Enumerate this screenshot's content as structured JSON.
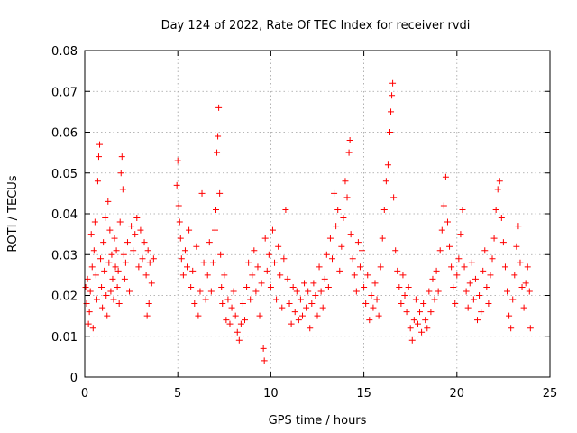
{
  "chart_data": {
    "type": "scatter",
    "title": "Day 124 of 2022, Rate Of TEC Index for receiver rvdi",
    "xlabel": "GPS time / hours",
    "ylabel": "ROTI / TECUs",
    "xlim": [
      0,
      25
    ],
    "ylim": [
      0,
      0.08
    ],
    "x_ticks": [
      "0",
      "5",
      "10",
      "15",
      "20",
      "25"
    ],
    "y_ticks": [
      "0",
      "0.01",
      "0.02",
      "0.03",
      "0.04",
      "0.05",
      "0.06",
      "0.07",
      "0.08"
    ],
    "grid": true,
    "marker": "+",
    "marker_color": "#ff0000",
    "series": [
      {
        "name": "",
        "points": [
          [
            0.05,
            0.022
          ],
          [
            0.1,
            0.018
          ],
          [
            0.15,
            0.024
          ],
          [
            0.2,
            0.013
          ],
          [
            0.25,
            0.016
          ],
          [
            0.3,
            0.021
          ],
          [
            0.35,
            0.035
          ],
          [
            0.4,
            0.027
          ],
          [
            0.45,
            0.012
          ],
          [
            0.5,
            0.031
          ],
          [
            0.55,
            0.038
          ],
          [
            0.6,
            0.025
          ],
          [
            0.65,
            0.019
          ],
          [
            0.7,
            0.048
          ],
          [
            0.75,
            0.054
          ],
          [
            0.8,
            0.057
          ],
          [
            0.85,
            0.029
          ],
          [
            0.9,
            0.022
          ],
          [
            0.95,
            0.017
          ],
          [
            1.0,
            0.033
          ],
          [
            1.05,
            0.026
          ],
          [
            1.1,
            0.039
          ],
          [
            1.15,
            0.02
          ],
          [
            1.2,
            0.015
          ],
          [
            1.25,
            0.043
          ],
          [
            1.3,
            0.028
          ],
          [
            1.35,
            0.036
          ],
          [
            1.4,
            0.021
          ],
          [
            1.45,
            0.03
          ],
          [
            1.5,
            0.024
          ],
          [
            1.55,
            0.019
          ],
          [
            1.6,
            0.034
          ],
          [
            1.65,
            0.027
          ],
          [
            1.7,
            0.031
          ],
          [
            1.75,
            0.022
          ],
          [
            1.8,
            0.026
          ],
          [
            1.85,
            0.018
          ],
          [
            1.9,
            0.038
          ],
          [
            1.95,
            0.05
          ],
          [
            2.0,
            0.054
          ],
          [
            2.05,
            0.046
          ],
          [
            2.1,
            0.03
          ],
          [
            2.15,
            0.024
          ],
          [
            2.2,
            0.028
          ],
          [
            2.3,
            0.033
          ],
          [
            2.4,
            0.021
          ],
          [
            2.5,
            0.037
          ],
          [
            2.6,
            0.031
          ],
          [
            2.7,
            0.035
          ],
          [
            2.8,
            0.039
          ],
          [
            2.9,
            0.027
          ],
          [
            3.0,
            0.036
          ],
          [
            3.1,
            0.029
          ],
          [
            3.2,
            0.033
          ],
          [
            3.3,
            0.025
          ],
          [
            3.4,
            0.031
          ],
          [
            3.5,
            0.028
          ],
          [
            3.6,
            0.023
          ],
          [
            3.7,
            0.029
          ],
          [
            3.35,
            0.015
          ],
          [
            3.45,
            0.018
          ],
          [
            4.95,
            0.047
          ],
          [
            5.0,
            0.053
          ],
          [
            5.05,
            0.042
          ],
          [
            5.1,
            0.038
          ],
          [
            5.15,
            0.034
          ],
          [
            5.2,
            0.029
          ],
          [
            5.3,
            0.025
          ],
          [
            5.4,
            0.031
          ],
          [
            5.5,
            0.027
          ],
          [
            5.6,
            0.036
          ],
          [
            5.7,
            0.022
          ],
          [
            5.8,
            0.026
          ],
          [
            5.9,
            0.018
          ],
          [
            6.0,
            0.032
          ],
          [
            6.1,
            0.015
          ],
          [
            6.2,
            0.021
          ],
          [
            6.3,
            0.045
          ],
          [
            6.4,
            0.028
          ],
          [
            6.5,
            0.019
          ],
          [
            6.6,
            0.025
          ],
          [
            6.7,
            0.033
          ],
          [
            6.8,
            0.021
          ],
          [
            6.9,
            0.028
          ],
          [
            7.0,
            0.036
          ],
          [
            7.05,
            0.041
          ],
          [
            7.1,
            0.055
          ],
          [
            7.15,
            0.059
          ],
          [
            7.2,
            0.066
          ],
          [
            7.25,
            0.045
          ],
          [
            7.3,
            0.03
          ],
          [
            7.35,
            0.022
          ],
          [
            7.4,
            0.018
          ],
          [
            7.5,
            0.025
          ],
          [
            7.6,
            0.014
          ],
          [
            7.7,
            0.019
          ],
          [
            7.8,
            0.013
          ],
          [
            7.9,
            0.017
          ],
          [
            8.0,
            0.021
          ],
          [
            8.1,
            0.015
          ],
          [
            8.2,
            0.011
          ],
          [
            8.3,
            0.009
          ],
          [
            8.4,
            0.013
          ],
          [
            8.5,
            0.018
          ],
          [
            8.6,
            0.014
          ],
          [
            8.7,
            0.022
          ],
          [
            8.8,
            0.028
          ],
          [
            8.9,
            0.019
          ],
          [
            9.0,
            0.025
          ],
          [
            9.1,
            0.031
          ],
          [
            9.2,
            0.021
          ],
          [
            9.3,
            0.027
          ],
          [
            9.4,
            0.015
          ],
          [
            9.5,
            0.023
          ],
          [
            9.6,
            0.007
          ],
          [
            9.65,
            0.004
          ],
          [
            9.7,
            0.034
          ],
          [
            9.8,
            0.026
          ],
          [
            9.9,
            0.03
          ],
          [
            10.0,
            0.022
          ],
          [
            10.1,
            0.036
          ],
          [
            10.2,
            0.028
          ],
          [
            10.3,
            0.019
          ],
          [
            10.4,
            0.032
          ],
          [
            10.5,
            0.025
          ],
          [
            10.6,
            0.017
          ],
          [
            10.7,
            0.029
          ],
          [
            10.8,
            0.041
          ],
          [
            10.9,
            0.024
          ],
          [
            11.0,
            0.018
          ],
          [
            11.1,
            0.013
          ],
          [
            11.2,
            0.022
          ],
          [
            11.3,
            0.016
          ],
          [
            11.4,
            0.021
          ],
          [
            11.5,
            0.014
          ],
          [
            11.6,
            0.019
          ],
          [
            11.7,
            0.015
          ],
          [
            11.8,
            0.023
          ],
          [
            11.9,
            0.017
          ],
          [
            12.0,
            0.021
          ],
          [
            12.1,
            0.012
          ],
          [
            12.2,
            0.018
          ],
          [
            12.3,
            0.023
          ],
          [
            12.4,
            0.02
          ],
          [
            12.5,
            0.015
          ],
          [
            12.6,
            0.027
          ],
          [
            12.7,
            0.021
          ],
          [
            12.8,
            0.017
          ],
          [
            12.9,
            0.024
          ],
          [
            13.0,
            0.03
          ],
          [
            13.1,
            0.022
          ],
          [
            13.2,
            0.034
          ],
          [
            13.3,
            0.029
          ],
          [
            13.4,
            0.045
          ],
          [
            13.5,
            0.037
          ],
          [
            13.6,
            0.041
          ],
          [
            13.7,
            0.026
          ],
          [
            13.8,
            0.032
          ],
          [
            13.9,
            0.039
          ],
          [
            14.0,
            0.048
          ],
          [
            14.1,
            0.044
          ],
          [
            14.2,
            0.055
          ],
          [
            14.25,
            0.058
          ],
          [
            14.3,
            0.035
          ],
          [
            14.4,
            0.029
          ],
          [
            14.5,
            0.025
          ],
          [
            14.6,
            0.021
          ],
          [
            14.7,
            0.033
          ],
          [
            14.8,
            0.027
          ],
          [
            14.9,
            0.031
          ],
          [
            15.0,
            0.022
          ],
          [
            15.1,
            0.018
          ],
          [
            15.2,
            0.025
          ],
          [
            15.3,
            0.014
          ],
          [
            15.4,
            0.02
          ],
          [
            15.5,
            0.017
          ],
          [
            15.6,
            0.023
          ],
          [
            15.7,
            0.019
          ],
          [
            15.8,
            0.015
          ],
          [
            15.9,
            0.027
          ],
          [
            16.0,
            0.034
          ],
          [
            16.1,
            0.041
          ],
          [
            16.2,
            0.048
          ],
          [
            16.3,
            0.052
          ],
          [
            16.4,
            0.06
          ],
          [
            16.45,
            0.065
          ],
          [
            16.5,
            0.069
          ],
          [
            16.55,
            0.072
          ],
          [
            16.6,
            0.044
          ],
          [
            16.7,
            0.031
          ],
          [
            16.8,
            0.026
          ],
          [
            16.9,
            0.022
          ],
          [
            17.0,
            0.018
          ],
          [
            17.1,
            0.025
          ],
          [
            17.2,
            0.02
          ],
          [
            17.3,
            0.016
          ],
          [
            17.4,
            0.022
          ],
          [
            17.5,
            0.012
          ],
          [
            17.6,
            0.009
          ],
          [
            17.7,
            0.014
          ],
          [
            17.8,
            0.019
          ],
          [
            17.9,
            0.013
          ],
          [
            18.0,
            0.016
          ],
          [
            18.1,
            0.011
          ],
          [
            18.2,
            0.018
          ],
          [
            18.3,
            0.014
          ],
          [
            18.4,
            0.012
          ],
          [
            18.5,
            0.021
          ],
          [
            18.6,
            0.016
          ],
          [
            18.7,
            0.024
          ],
          [
            18.8,
            0.019
          ],
          [
            18.9,
            0.026
          ],
          [
            19.0,
            0.021
          ],
          [
            19.1,
            0.031
          ],
          [
            19.2,
            0.036
          ],
          [
            19.3,
            0.042
          ],
          [
            19.4,
            0.049
          ],
          [
            19.5,
            0.038
          ],
          [
            19.6,
            0.032
          ],
          [
            19.7,
            0.027
          ],
          [
            19.8,
            0.022
          ],
          [
            19.9,
            0.018
          ],
          [
            20.0,
            0.025
          ],
          [
            20.1,
            0.029
          ],
          [
            20.2,
            0.035
          ],
          [
            20.3,
            0.041
          ],
          [
            20.4,
            0.027
          ],
          [
            20.5,
            0.021
          ],
          [
            20.6,
            0.017
          ],
          [
            20.7,
            0.023
          ],
          [
            20.8,
            0.028
          ],
          [
            20.9,
            0.019
          ],
          [
            21.0,
            0.024
          ],
          [
            21.1,
            0.014
          ],
          [
            21.2,
            0.02
          ],
          [
            21.3,
            0.016
          ],
          [
            21.4,
            0.026
          ],
          [
            21.5,
            0.031
          ],
          [
            21.6,
            0.022
          ],
          [
            21.7,
            0.018
          ],
          [
            21.8,
            0.025
          ],
          [
            21.9,
            0.029
          ],
          [
            22.0,
            0.034
          ],
          [
            22.1,
            0.041
          ],
          [
            22.2,
            0.046
          ],
          [
            22.3,
            0.048
          ],
          [
            22.4,
            0.039
          ],
          [
            22.5,
            0.033
          ],
          [
            22.6,
            0.027
          ],
          [
            22.7,
            0.021
          ],
          [
            22.8,
            0.015
          ],
          [
            22.9,
            0.012
          ],
          [
            23.0,
            0.019
          ],
          [
            23.1,
            0.025
          ],
          [
            23.2,
            0.032
          ],
          [
            23.3,
            0.037
          ],
          [
            23.4,
            0.028
          ],
          [
            23.5,
            0.022
          ],
          [
            23.6,
            0.017
          ],
          [
            23.7,
            0.023
          ],
          [
            23.8,
            0.027
          ],
          [
            23.9,
            0.021
          ],
          [
            23.95,
            0.012
          ]
        ]
      }
    ]
  }
}
